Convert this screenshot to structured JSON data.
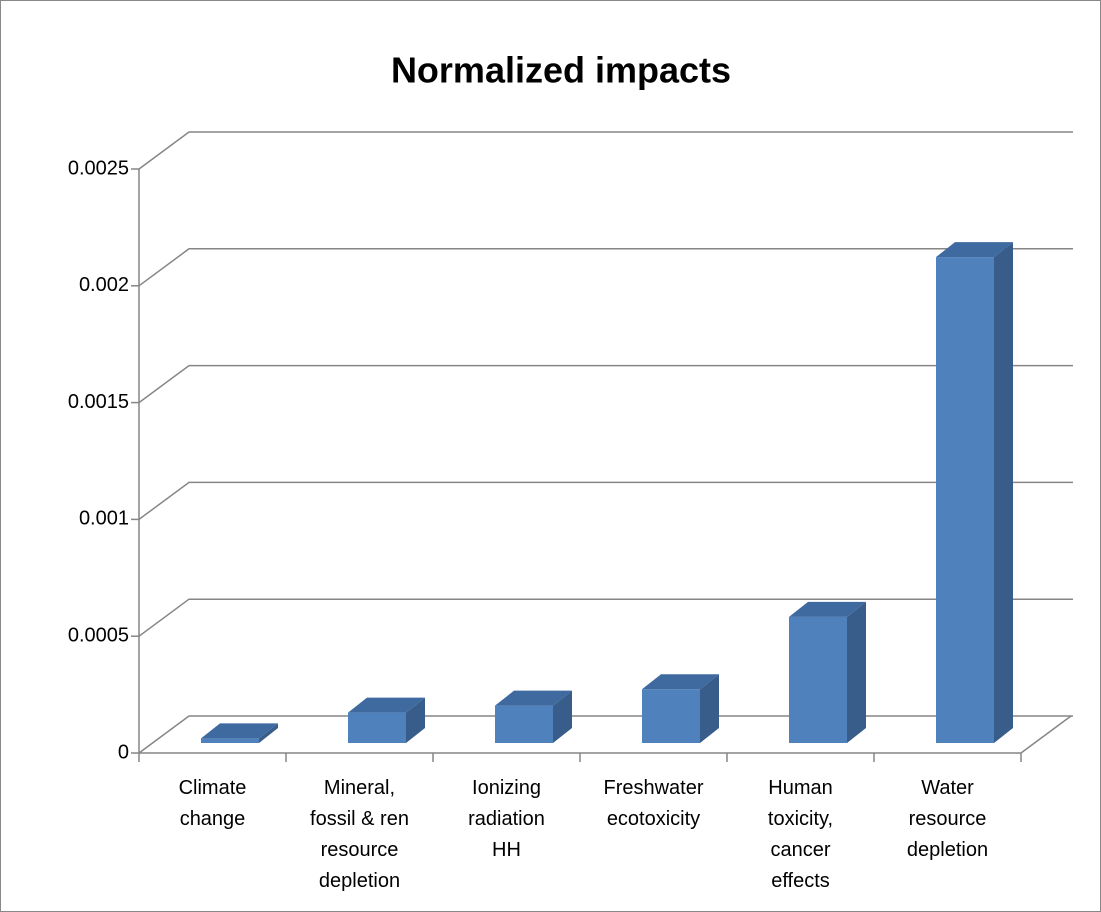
{
  "chart_data": {
    "type": "bar3d",
    "title": "Normalized impacts",
    "categories": [
      "Climate\nchange",
      "Mineral,\nfossil & ren\nresource\ndepletion",
      "Ionizing\nradiation\nHH",
      "Freshwater\necotoxicity",
      "Human\ntoxicity,\ncancer\neffects",
      "Water\nresource\ndepletion"
    ],
    "values": [
      2e-05,
      0.00013,
      0.00016,
      0.00023,
      0.00054,
      0.00208
    ],
    "color": "#4f81bd",
    "ylim": [
      0,
      0.0025
    ],
    "yticks": [
      0,
      0.0005,
      0.001,
      0.0015,
      0.002,
      0.0025
    ],
    "grid": true
  }
}
